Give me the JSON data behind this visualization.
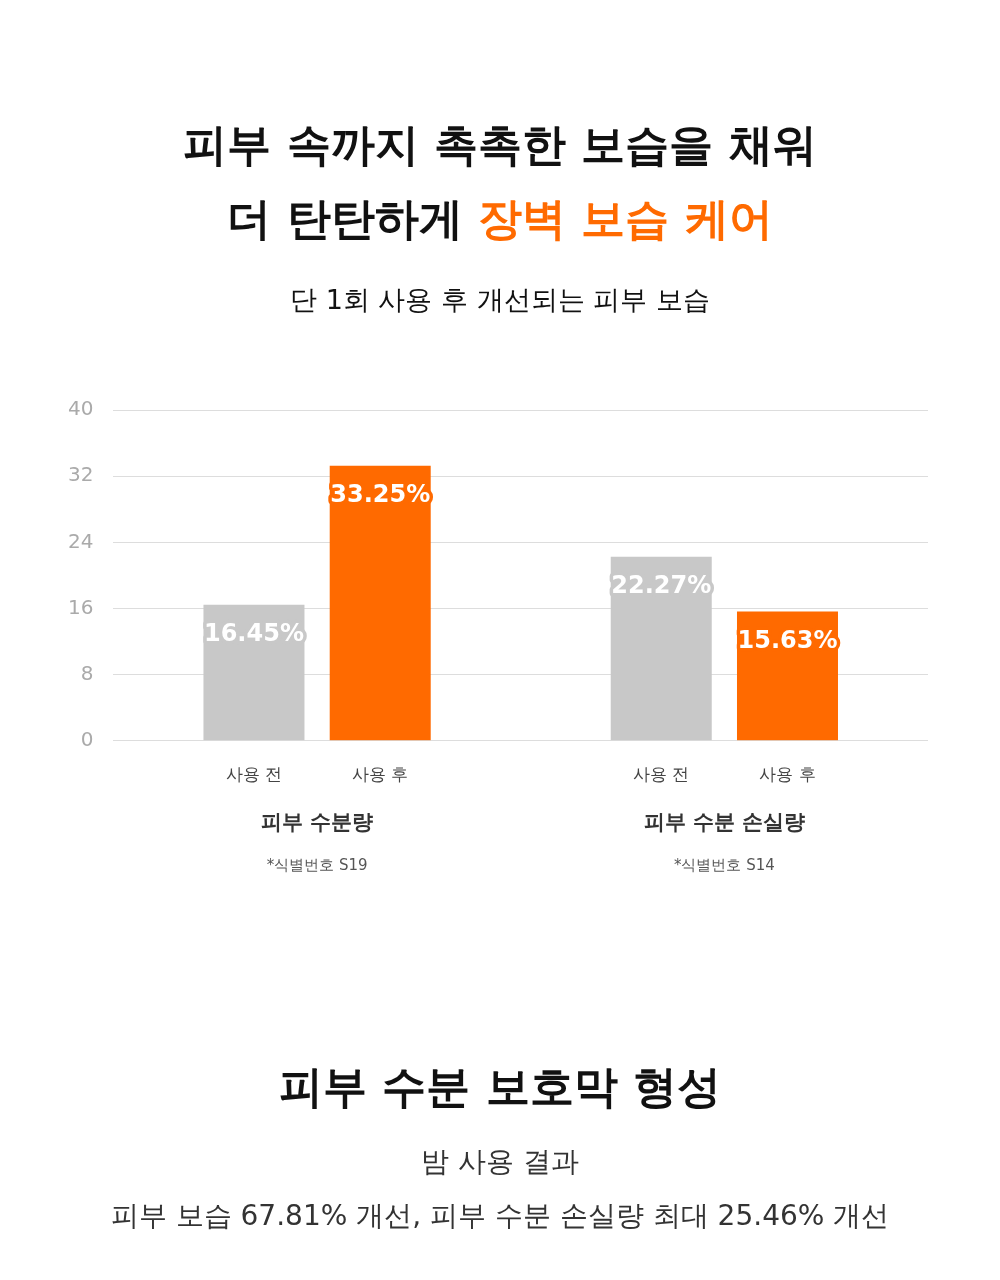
{
  "chart_data": {
    "type": "bar",
    "title": "피부 속까지 촉촉한 보습을 채워 더 탄탄하게 장벽 보습 케어",
    "subtitle": "단 1회 사용 후 개선되는 피부 보습",
    "categories": [
      "피부 수분량",
      "피부 수분 손실량"
    ],
    "series": [
      {
        "name": "사용 전",
        "color": "#c8c8c8",
        "values": [
          16.45,
          22.27
        ],
        "value_labels": [
          "16.45%",
          "22.27%"
        ]
      },
      {
        "name": "사용 후",
        "color": "#ff6a00",
        "values": [
          33.25,
          15.63
        ],
        "value_labels": [
          "33.25%",
          "15.63%"
        ]
      }
    ],
    "ylim": [
      0,
      40
    ],
    "yticks": [
      0,
      8,
      16,
      24,
      32,
      40
    ],
    "grid": "y",
    "annotations": [
      "*식별번호 S19",
      "*식별번호 S14",
      "피부 수분 보호막 형성",
      "밤 사용 결과",
      "피부 보습 67.81% 개선, 피부 수분 손실량 최대 25.46% 개선"
    ]
  }
}
